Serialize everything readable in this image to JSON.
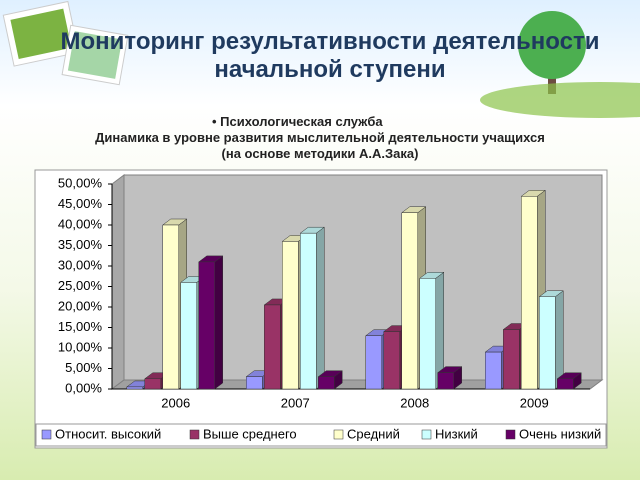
{
  "slide": {
    "title": "Мониторинг результативности деятельности начальной ступени",
    "bullet": "Психологическая служба"
  },
  "chart_data": {
    "type": "bar3d",
    "title": "Динамика в уровне развития мыслительной деятельности учащихся",
    "subtitle": "(на основе методики А.А.Зака)",
    "categories": [
      "2006",
      "2007",
      "2008",
      "2009"
    ],
    "series": [
      {
        "name": "Относит. высокий",
        "color": "#9999ff",
        "values": [
          0.5,
          3,
          13,
          9
        ]
      },
      {
        "name": "Выше среднего",
        "color": "#993366",
        "values": [
          2.5,
          20.5,
          14,
          14.5
        ]
      },
      {
        "name": "Средний",
        "color": "#ffffcc",
        "values": [
          40,
          36,
          43,
          47
        ]
      },
      {
        "name": "Низкий",
        "color": "#ccffff",
        "values": [
          26,
          38,
          27,
          22.5
        ]
      },
      {
        "name": "Очень низкий",
        "color": "#660066",
        "values": [
          31,
          3,
          4,
          2.5
        ]
      }
    ],
    "ylim": [
      0,
      50
    ],
    "yticks": [
      {
        "value": 0,
        "label": "0,00%"
      },
      {
        "value": 5,
        "label": "5,00%"
      },
      {
        "value": 10,
        "label": "10,00%"
      },
      {
        "value": 15,
        "label": "15,00%"
      },
      {
        "value": 20,
        "label": "20,00%"
      },
      {
        "value": 25,
        "label": "25,00%"
      },
      {
        "value": 30,
        "label": "30,00%"
      },
      {
        "value": 35,
        "label": "35,00%"
      },
      {
        "value": 40,
        "label": "40,00%"
      },
      {
        "value": 45,
        "label": "45,00%"
      },
      {
        "value": 50,
        "label": "50,00%"
      }
    ],
    "grid": false,
    "legend": "bottom"
  }
}
